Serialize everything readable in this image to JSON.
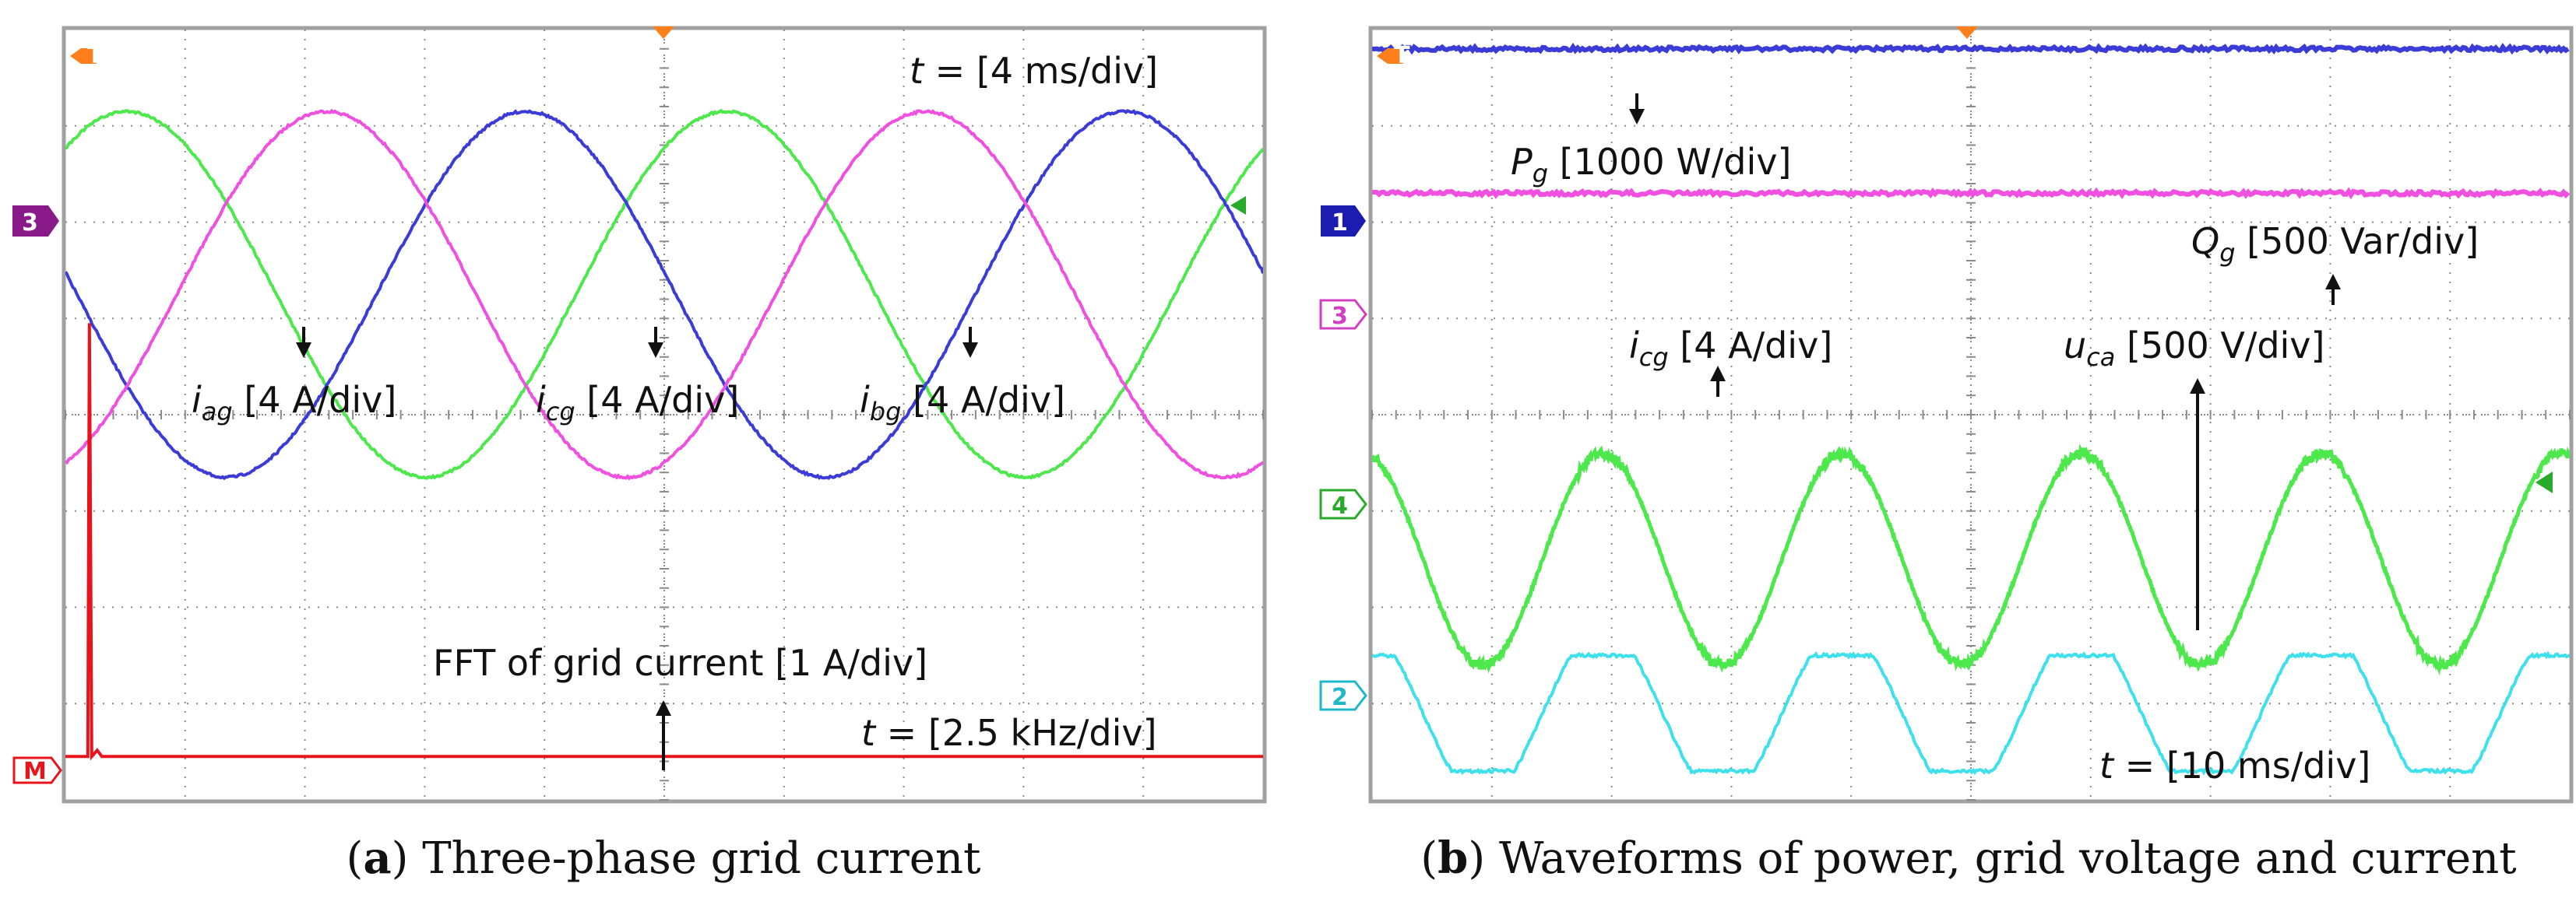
{
  "colors": {
    "blue": "#3b3bd8",
    "magenta": "#f050e0",
    "green": "#4ce84c",
    "cyan": "#3ee0ec",
    "red": "#e8141c",
    "orange": "#ff7f1a",
    "purple": "#8a1a8a",
    "grid": "#8a8a8a",
    "frame": "#a0a0a0"
  },
  "panel_a": {
    "caption_letter": "a",
    "caption_text": " Three-phase grid current",
    "time_label": {
      "var": "t",
      "text": " = [4 ms/div]"
    },
    "fft_label": "FFT of grid current [1 A/div]",
    "fft_time_label": {
      "var": "t",
      "text": " = [2.5 kHz/div]"
    },
    "labels": {
      "iag": {
        "var": "i",
        "sub": "ag",
        "text": " [4 A/div]"
      },
      "icg": {
        "var": "i",
        "sub": "cg",
        "text": " [4 A/div]"
      },
      "ibg": {
        "var": "i",
        "sub": "bg",
        "text": " [4 A/div]"
      }
    },
    "markers": {
      "trigger": "T",
      "channel": "3",
      "math": "M"
    }
  },
  "panel_b": {
    "caption_letter": "b",
    "caption_text": " Waveforms of power, grid voltage and current",
    "time_label": {
      "var": "t",
      "text": " = [10 ms/div]"
    },
    "labels": {
      "pg": {
        "var": "P",
        "sub": "g",
        "text": " [1000 W/div]"
      },
      "qg": {
        "var": "Q",
        "sub": "g",
        "text": " [500 Var/div]"
      },
      "icg": {
        "var": "i",
        "sub": "cg",
        "text": " [4 A/div]"
      },
      "uca": {
        "var": "u",
        "sub": "ca",
        "text": " [500 V/div]"
      }
    },
    "markers": {
      "trigger": "T",
      "ch1": "1",
      "ch3": "3",
      "ch4": "4",
      "ch2": "2"
    }
  },
  "chart_data": [
    {
      "type": "line",
      "title": "Three-phase grid current",
      "xlabel": "t = [4 ms/div]",
      "ylabel": "[4 A/div]",
      "x_divisions": 10,
      "y_divisions": 8,
      "waveform": "sine",
      "period_divisions": 5,
      "series": [
        {
          "name": "iag",
          "color": "magenta",
          "amplitude_divisions": 1.9,
          "phase_deg": 0
        },
        {
          "name": "ibg",
          "color": "blue",
          "amplitude_divisions": 1.9,
          "phase_deg": 120
        },
        {
          "name": "icg",
          "color": "green",
          "amplitude_divisions": 1.9,
          "phase_deg": 240
        }
      ]
    },
    {
      "type": "bar",
      "title": "FFT of grid current [1 A/div]",
      "xlabel": "t = [2.5 kHz/div]",
      "ylabel": "[1 A/div]",
      "series": [
        {
          "name": "FFT of grid current",
          "color": "red",
          "x_kHz": [
            0.5
          ],
          "values_A": [
            4.5
          ]
        }
      ]
    },
    {
      "type": "line",
      "title": "Waveforms of power, grid voltage and current",
      "xlabel": "t = [10 ms/div]",
      "x_divisions": 10,
      "y_divisions": 8,
      "series": [
        {
          "name": "Pg",
          "color": "blue",
          "unit": "1000 W/div",
          "waveform": "flat",
          "level_divisions": 3.8
        },
        {
          "name": "Qg",
          "color": "magenta",
          "unit": "500 Var/div",
          "waveform": "flat",
          "level_divisions": 2.3
        },
        {
          "name": "icg",
          "color": "green",
          "unit": "4 A/div",
          "waveform": "sine",
          "period_divisions": 2,
          "amplitude_divisions": 1.1,
          "center_divisions": -1.5
        },
        {
          "name": "uca",
          "color": "cyan",
          "unit": "500 V/div",
          "waveform": "trapezoid",
          "period_divisions": 2,
          "amplitude_divisions": 0.6,
          "center_divisions": -3.1
        }
      ]
    }
  ]
}
